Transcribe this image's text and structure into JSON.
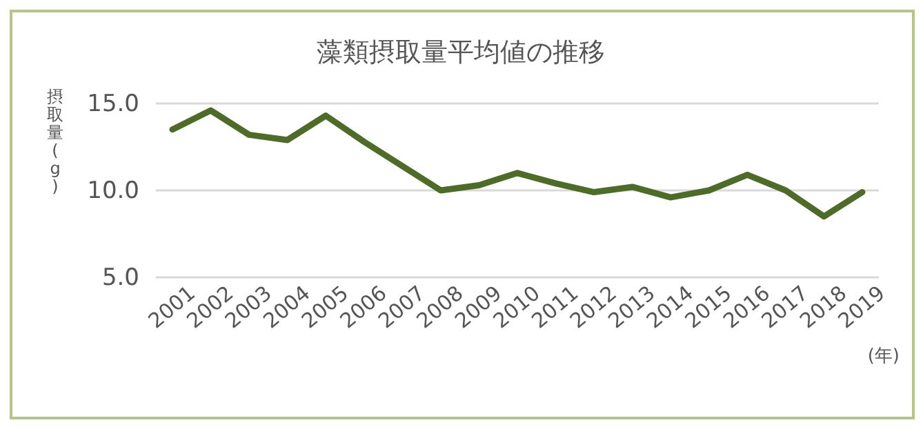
{
  "chart_data": {
    "type": "line",
    "title": "藻類摂取量平均値の推移",
    "ylabel": "摂取量(g)",
    "xlabel": "(年)",
    "categories": [
      "2001",
      "2002",
      "2003",
      "2004",
      "2005",
      "2006",
      "2007",
      "2008",
      "2009",
      "2010",
      "2011",
      "2012",
      "2013",
      "2014",
      "2015",
      "2016",
      "2017",
      "2018",
      "2019"
    ],
    "series": [
      {
        "color": "#4e6b2a",
        "values": [
          13.5,
          14.6,
          13.2,
          12.9,
          14.3,
          12.8,
          11.4,
          10.0,
          10.3,
          11.0,
          10.4,
          9.9,
          10.2,
          9.6,
          10.0,
          10.9,
          10.0,
          8.5,
          9.9
        ]
      }
    ],
    "ylim": [
      5,
      15
    ],
    "yticks": [
      {
        "value": 5,
        "label": "5.0"
      },
      {
        "value": 10,
        "label": "10.0"
      },
      {
        "value": 15,
        "label": "15.0"
      }
    ],
    "grid": "y",
    "marker": "none",
    "line_style": "solid"
  }
}
